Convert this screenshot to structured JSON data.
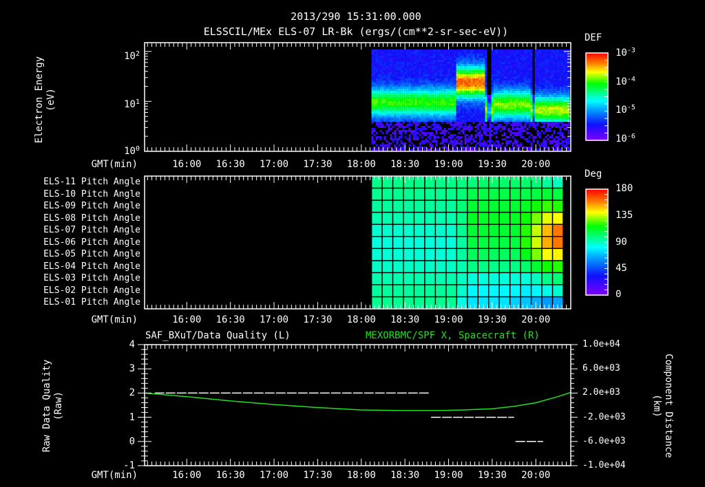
{
  "header": {
    "timestamp": "2013/290 15:31:00.000",
    "subtitle": "ELSSCIL/MEx ELS-07 LR-Bk  (ergs/(cm**2-sr-sec-eV))"
  },
  "time_axis": {
    "label": "GMT(min)",
    "ticks": [
      "16:00",
      "16:30",
      "17:00",
      "17:30",
      "18:00",
      "18:30",
      "19:00",
      "19:30",
      "20:00"
    ],
    "start": "15:31",
    "end": "20:24"
  },
  "panel_energy": {
    "ylabel_line1": "Electron Energy",
    "ylabel_line2": "(eV)",
    "y_ticks": [
      {
        "base": "10",
        "exp": "2"
      },
      {
        "base": "10",
        "exp": "1"
      },
      {
        "base": "10",
        "exp": "0"
      }
    ],
    "colorbar": {
      "title": "DEF",
      "labels": [
        {
          "base": "10",
          "exp": "-3"
        },
        {
          "base": "10",
          "exp": "-4"
        },
        {
          "base": "10",
          "exp": "-5"
        },
        {
          "base": "10",
          "exp": "-6"
        }
      ]
    }
  },
  "panel_pitch": {
    "row_labels": [
      "ELS-11 Pitch Angle",
      "ELS-10 Pitch Angle",
      "ELS-09 Pitch Angle",
      "ELS-08 Pitch Angle",
      "ELS-07 Pitch Angle",
      "ELS-06 Pitch Angle",
      "ELS-05 Pitch Angle",
      "ELS-04 Pitch Angle",
      "ELS-03 Pitch Angle",
      "ELS-02 Pitch Angle",
      "ELS-01 Pitch Angle"
    ],
    "colorbar": {
      "title": "Deg",
      "labels": [
        "180",
        "135",
        "90",
        "45",
        "0"
      ]
    }
  },
  "panel_quality": {
    "left_title": "SAF_BXuT/Data Quality (L)",
    "right_title": "MEXORBMC/SPF X, Spacecraft (R)",
    "ylabel_left_line1": "Raw Data Quality",
    "ylabel_left_line2": "(Raw)",
    "y_left_ticks": [
      "4",
      "3",
      "2",
      "1",
      "0",
      "-1"
    ],
    "ylabel_right_line1": "Component Distance",
    "ylabel_right_line2": "(km)",
    "y_right_ticks": [
      "1.0e+04",
      "6.0e+03",
      "2.0e+03",
      "-2.0e+03",
      "-6.0e+03",
      "-1.0e+04"
    ]
  },
  "colors": {
    "background": "#000000",
    "axis": "#ffffff",
    "spf_line": "#20e020",
    "quality_line": "#ffffff"
  },
  "chart_data": [
    {
      "type": "heatmap",
      "title": "ELSSCIL/MEx ELS-07 LR-Bk (ergs/(cm**2-sr-sec-eV))",
      "xlabel": "GMT(min)",
      "ylabel": "Electron Energy (eV)",
      "yscale": "log",
      "ylim": [
        1,
        150
      ],
      "xlim": [
        "15:31",
        "20:24"
      ],
      "colorbar": {
        "label": "DEF",
        "scale": "log",
        "range": [
          1e-06,
          0.001
        ]
      },
      "data_start": "18:07",
      "features": [
        {
          "time_range": [
            "18:07",
            "19:05"
          ],
          "peak_energy_eV": 10,
          "peak_def": 3e-05
        },
        {
          "time_range": [
            "19:05",
            "19:25"
          ],
          "peak_energy_eV": 25,
          "peak_def": 0.00015
        },
        {
          "time_range": [
            "19:30",
            "19:55"
          ],
          "peak_energy_eV": 9,
          "peak_def": 4e-05
        },
        {
          "time_range": [
            "20:00",
            "20:24"
          ],
          "peak_energy_eV": 7,
          "peak_def": 5e-05
        }
      ]
    },
    {
      "type": "heatmap",
      "title": "ELS Pitch Angle",
      "xlabel": "GMT(min)",
      "categories": [
        "ELS-11",
        "ELS-10",
        "ELS-09",
        "ELS-08",
        "ELS-07",
        "ELS-06",
        "ELS-05",
        "ELS-04",
        "ELS-03",
        "ELS-02",
        "ELS-01"
      ],
      "colorbar": {
        "label": "Deg",
        "range": [
          0,
          180
        ]
      },
      "data_start": "18:07",
      "times": [
        "18:07",
        "18:15",
        "18:22",
        "18:30",
        "18:37",
        "18:45",
        "18:52",
        "19:00",
        "19:07",
        "19:15",
        "19:22",
        "19:30",
        "19:37",
        "19:45",
        "19:52",
        "20:00",
        "20:07",
        "20:15"
      ],
      "values": [
        [
          98,
          98,
          98,
          98,
          98,
          98,
          98,
          98,
          99,
          100,
          102,
          102,
          102,
          102,
          102,
          100,
          95,
          90
        ],
        [
          97,
          97,
          97,
          97,
          97,
          97,
          97,
          97,
          100,
          106,
          107,
          107,
          107,
          107,
          107,
          108,
          110,
          108
        ],
        [
          95,
          95,
          95,
          95,
          95,
          95,
          95,
          95,
          100,
          110,
          110,
          110,
          110,
          110,
          112,
          118,
          122,
          120
        ],
        [
          92,
          92,
          92,
          92,
          92,
          92,
          92,
          92,
          98,
          112,
          112,
          112,
          112,
          112,
          118,
          128,
          138,
          140
        ],
        [
          88,
          88,
          88,
          88,
          88,
          88,
          88,
          88,
          96,
          110,
          110,
          110,
          110,
          110,
          120,
          135,
          150,
          160
        ],
        [
          86,
          86,
          86,
          86,
          86,
          86,
          86,
          86,
          94,
          108,
          108,
          108,
          108,
          108,
          120,
          136,
          152,
          160
        ],
        [
          87,
          87,
          87,
          87,
          87,
          87,
          87,
          87,
          94,
          104,
          104,
          104,
          104,
          104,
          114,
          128,
          140,
          142
        ],
        [
          89,
          89,
          89,
          89,
          89,
          89,
          89,
          89,
          92,
          98,
          98,
          98,
          98,
          98,
          102,
          110,
          118,
          120
        ],
        [
          92,
          92,
          92,
          92,
          92,
          92,
          92,
          92,
          90,
          86,
          86,
          86,
          86,
          86,
          86,
          90,
          98,
          100
        ],
        [
          95,
          95,
          95,
          95,
          95,
          95,
          95,
          95,
          88,
          80,
          80,
          80,
          80,
          80,
          78,
          80,
          84,
          88
        ],
        [
          97,
          97,
          97,
          97,
          97,
          97,
          97,
          97,
          85,
          76,
          76,
          76,
          76,
          72,
          70,
          66,
          62,
          64
        ]
      ]
    },
    {
      "type": "line",
      "title": "SAF_BXuT/Data Quality (L)",
      "ylabel": "Raw Data Quality (Raw)",
      "ylim": [
        -1,
        4
      ],
      "series": [
        {
          "name": "Data Quality",
          "axis": "left",
          "style": "dashed",
          "color": "#ffffff",
          "segments": [
            {
              "t": [
                "15:38",
                "18:47"
              ],
              "value": 2
            },
            {
              "t": [
                "18:48",
                "19:45"
              ],
              "value": 1
            },
            {
              "t": [
                "19:46",
                "20:05"
              ],
              "value": 0
            }
          ]
        }
      ]
    },
    {
      "type": "line",
      "title": "MEXORBMC/SPF X, Spacecraft (R)",
      "ylabel": "Component Distance (km)",
      "ylim": [
        -10000,
        10000
      ],
      "series": [
        {
          "name": "SPF X",
          "axis": "right",
          "color": "#20e020",
          "x": [
            "15:31",
            "16:00",
            "16:30",
            "17:00",
            "17:30",
            "18:00",
            "18:30",
            "18:50",
            "19:10",
            "19:30",
            "19:45",
            "20:00",
            "20:15",
            "20:24"
          ],
          "values": [
            2000,
            1400,
            700,
            100,
            -400,
            -800,
            -900,
            -900,
            -800,
            -600,
            -200,
            400,
            1400,
            2100
          ]
        }
      ]
    }
  ]
}
